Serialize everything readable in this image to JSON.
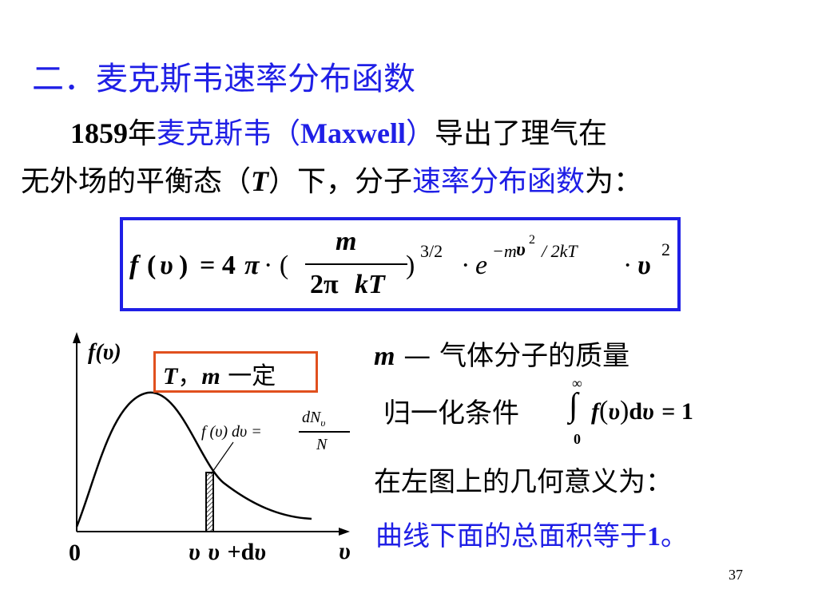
{
  "heading": "二．麦克斯韦速率分布函数",
  "intro": {
    "year": "1859",
    "nian": "年",
    "name_cn": "麦克斯韦",
    "paren_open": "（",
    "name_en": "Maxwell",
    "paren_close": "）",
    "rest1": "导出了理气在",
    "line2_start": "无外场的平衡态（",
    "T": "T",
    "line2_mid": "）下，分子",
    "term": "速率分布函数",
    "line2_end": "为："
  },
  "formula": {
    "lhs_f": "f",
    "lhs_arg": "(",
    "v": "υ",
    "lhs_close": ")",
    "equals": "= 4",
    "pi": "π",
    "dot_paren": "· (",
    "numerator": "m",
    "denominator_2pi": "2π",
    "denominator_kT": "kT",
    "close_paren": ")",
    "power": "3/2",
    "dot_e": "· e",
    "exp_prefix": "−m",
    "exp_v": "υ",
    "exp_sq": "2",
    "exp_rest": "/ 2kT",
    "dot_v": "·",
    "sq": "2"
  },
  "plot": {
    "y_label_f": "f",
    "y_label_arg": "(υ)",
    "origin": "0",
    "x_v1": "υ",
    "x_v2": "υ",
    "x_plus": "+d",
    "x_v3": "υ",
    "x_axis": "υ",
    "condition_T": "T",
    "condition_sep": "，",
    "condition_m": "m",
    "condition_text": " 一定",
    "strip_lhs": "f (υ) dυ =",
    "strip_num": "dN",
    "strip_num_sub": "υ",
    "strip_den": "N"
  },
  "notes": {
    "m_symbol": "m",
    "m_desc": " — 气体分子的质量",
    "normalization_label": "归一化条件",
    "integral_upper": "∞",
    "integral_lower": "0",
    "integral_body": "f",
    "integral_v": "υ",
    "integral_d": "d",
    "integral_v2": "υ",
    "integral_eq": "= 1",
    "geometric_meaning": "在左图上的几何意义为：",
    "conclusion": "曲线下面的总面积等于",
    "conclusion_one": "1",
    "conclusion_end": "。"
  },
  "page_number": "37",
  "colors": {
    "blue": "#1f1fe6",
    "box_orange": "#e0501e",
    "black": "#000000"
  }
}
